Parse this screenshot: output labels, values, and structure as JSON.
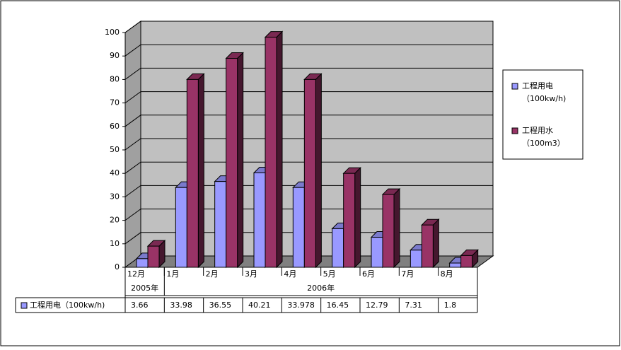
{
  "chart_data": {
    "type": "bar3d",
    "categories": [
      "12月",
      "1月",
      "2月",
      "3月",
      "4月",
      "5月",
      "6月",
      "7月",
      "8月"
    ],
    "category_groups": [
      {
        "label": "2005年",
        "span": 1
      },
      {
        "label": "2006年",
        "span": 8
      }
    ],
    "series": [
      {
        "name": "工程用电（100kw/h)",
        "color": "#9999ff",
        "values": [
          3.66,
          33.98,
          36.55,
          40.21,
          33.978,
          16.45,
          12.79,
          7.31,
          1.8
        ],
        "in_table": true
      },
      {
        "name": "工程用水（100m3）",
        "color": "#993366",
        "values": [
          9,
          80,
          89,
          98,
          80,
          40,
          31,
          18,
          5
        ],
        "in_table": false
      }
    ],
    "ylim": [
      0,
      100
    ],
    "yticks": [
      0,
      10,
      20,
      30,
      40,
      50,
      60,
      70,
      80,
      90,
      100
    ],
    "grid": true
  }
}
